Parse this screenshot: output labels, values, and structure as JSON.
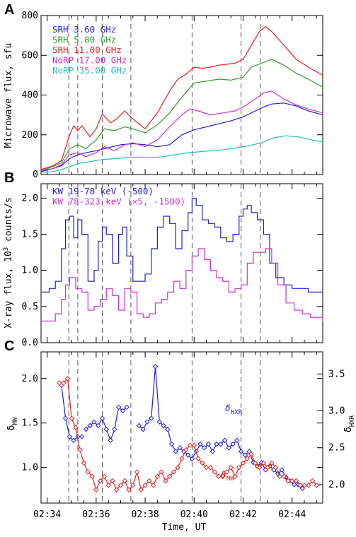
{
  "figure": {
    "panel_labels": [
      "A",
      "B",
      "C"
    ],
    "xlabel": "Time, UT"
  },
  "chart_data": [
    {
      "type": "line",
      "panel": "A",
      "ylabel": "Microwave flux, sfu",
      "xlim": [
        "02:33:45",
        "02:45:15"
      ],
      "ylim": [
        0,
        800
      ],
      "yticks": [
        0,
        200,
        400,
        600,
        800
      ],
      "legend_position": "top-left",
      "series": [
        {
          "name": "SRH 3.60 GHz",
          "color": "#1f1fdc",
          "x": [
            "02:33:45",
            "02:34:15",
            "02:34:35",
            "02:34:55",
            "02:35:15",
            "02:35:35",
            "02:36:00",
            "02:36:30",
            "02:37:00",
            "02:37:30",
            "02:38:00",
            "02:38:30",
            "02:39:00",
            "02:39:30",
            "02:40:00",
            "02:40:30",
            "02:41:00",
            "02:41:30",
            "02:42:00",
            "02:42:30",
            "02:42:50",
            "02:43:10",
            "02:43:40",
            "02:44:10",
            "02:44:40",
            "02:45:15"
          ],
          "values": [
            15,
            30,
            45,
            80,
            100,
            110,
            120,
            135,
            150,
            155,
            150,
            140,
            150,
            200,
            225,
            240,
            255,
            270,
            290,
            320,
            340,
            355,
            360,
            345,
            320,
            300
          ]
        },
        {
          "name": "SRH 5.80 GHz",
          "color": "#2e9c2e",
          "x": [
            "02:33:45",
            "02:34:15",
            "02:34:35",
            "02:34:55",
            "02:35:15",
            "02:35:35",
            "02:36:00",
            "02:36:20",
            "02:36:45",
            "02:37:10",
            "02:37:30",
            "02:38:00",
            "02:38:30",
            "02:39:00",
            "02:39:30",
            "02:40:00",
            "02:40:30",
            "02:41:00",
            "02:41:30",
            "02:42:00",
            "02:42:20",
            "02:42:45",
            "02:43:10",
            "02:43:40",
            "02:44:10",
            "02:44:40",
            "02:45:15"
          ],
          "values": [
            20,
            40,
            60,
            130,
            150,
            130,
            175,
            230,
            220,
            240,
            230,
            210,
            250,
            310,
            390,
            460,
            470,
            480,
            475,
            490,
            540,
            560,
            580,
            550,
            510,
            480,
            440
          ]
        },
        {
          "name": "SRH 11.00 GHz",
          "color": "#e41f1f",
          "x": [
            "02:33:45",
            "02:34:15",
            "02:34:35",
            "02:34:55",
            "02:35:05",
            "02:35:15",
            "02:35:25",
            "02:35:45",
            "02:36:00",
            "02:36:15",
            "02:36:35",
            "02:36:50",
            "02:37:10",
            "02:37:30",
            "02:38:00",
            "02:38:30",
            "02:39:00",
            "02:39:20",
            "02:39:40",
            "02:40:00",
            "02:40:20",
            "02:40:40",
            "02:41:00",
            "02:41:20",
            "02:41:40",
            "02:42:00",
            "02:42:20",
            "02:42:40",
            "02:42:55",
            "02:43:10",
            "02:43:40",
            "02:44:10",
            "02:44:40",
            "02:45:15"
          ],
          "values": [
            25,
            45,
            70,
            200,
            245,
            220,
            245,
            190,
            230,
            305,
            260,
            280,
            320,
            280,
            230,
            310,
            420,
            480,
            505,
            540,
            535,
            540,
            550,
            555,
            560,
            580,
            650,
            720,
            745,
            720,
            650,
            580,
            540,
            500
          ]
        },
        {
          "name": "NoRP 17.00 GHz",
          "color": "#cc2fcc",
          "x": [
            "02:33:45",
            "02:34:15",
            "02:34:35",
            "02:34:55",
            "02:35:15",
            "02:35:35",
            "02:36:00",
            "02:36:20",
            "02:36:45",
            "02:37:10",
            "02:37:30",
            "02:38:00",
            "02:38:30",
            "02:39:00",
            "02:39:30",
            "02:39:50",
            "02:40:10",
            "02:40:40",
            "02:41:10",
            "02:41:40",
            "02:42:00",
            "02:42:30",
            "02:42:50",
            "02:43:10",
            "02:43:40",
            "02:44:10",
            "02:44:40",
            "02:45:15"
          ],
          "values": [
            20,
            30,
            50,
            100,
            110,
            90,
            110,
            140,
            120,
            150,
            160,
            140,
            175,
            240,
            300,
            330,
            320,
            300,
            310,
            320,
            340,
            380,
            410,
            420,
            380,
            350,
            330,
            310
          ]
        },
        {
          "name": "NoRP 35.00 GHz",
          "color": "#22bfbf",
          "x": [
            "02:33:45",
            "02:34:15",
            "02:34:35",
            "02:34:55",
            "02:35:15",
            "02:35:45",
            "02:36:15",
            "02:36:45",
            "02:37:15",
            "02:37:45",
            "02:38:15",
            "02:38:45",
            "02:39:15",
            "02:39:45",
            "02:40:15",
            "02:40:45",
            "02:41:15",
            "02:41:45",
            "02:42:15",
            "02:42:45",
            "02:43:15",
            "02:43:45",
            "02:44:15",
            "02:44:45",
            "02:45:15"
          ],
          "values": [
            10,
            15,
            25,
            40,
            55,
            65,
            75,
            80,
            85,
            88,
            85,
            90,
            100,
            110,
            115,
            120,
            125,
            135,
            145,
            160,
            185,
            195,
            190,
            175,
            165
          ]
        }
      ]
    },
    {
      "type": "line",
      "panel": "B",
      "ylabel": "X-ray flux, 10^3 counts/s",
      "ylim": [
        0,
        2.2
      ],
      "yticks": [
        0.0,
        0.5,
        1.0,
        1.5,
        2.0
      ],
      "legend_position": "top-left",
      "series": [
        {
          "name": "KW 19-78 keV (-500)",
          "color": "#1f1fdc",
          "x": [
            "02:33:45",
            "02:34:05",
            "02:34:20",
            "02:34:35",
            "02:34:45",
            "02:34:55",
            "02:35:05",
            "02:35:15",
            "02:35:25",
            "02:35:40",
            "02:35:55",
            "02:36:05",
            "02:36:15",
            "02:36:25",
            "02:36:40",
            "02:36:55",
            "02:37:05",
            "02:37:15",
            "02:37:30",
            "02:37:45",
            "02:38:00",
            "02:38:15",
            "02:38:30",
            "02:38:45",
            "02:39:00",
            "02:39:15",
            "02:39:30",
            "02:39:45",
            "02:39:55",
            "02:40:05",
            "02:40:20",
            "02:40:35",
            "02:40:50",
            "02:41:05",
            "02:41:20",
            "02:41:35",
            "02:41:50",
            "02:42:00",
            "02:42:10",
            "02:42:20",
            "02:42:35",
            "02:42:50",
            "02:43:05",
            "02:43:20",
            "02:43:40",
            "02:44:00",
            "02:44:20",
            "02:44:40",
            "02:45:15"
          ],
          "values": [
            0.7,
            0.75,
            0.85,
            1.3,
            1.7,
            1.75,
            1.45,
            1.7,
            1.5,
            0.85,
            1.0,
            1.4,
            1.6,
            1.5,
            1.1,
            1.5,
            1.6,
            1.2,
            0.85,
            0.85,
            0.95,
            1.3,
            1.6,
            1.75,
            1.65,
            1.3,
            1.55,
            1.8,
            2.0,
            1.9,
            1.7,
            1.65,
            1.6,
            1.45,
            1.4,
            1.5,
            1.75,
            1.85,
            1.9,
            1.8,
            1.7,
            1.5,
            1.1,
            0.9,
            0.8,
            0.75,
            0.75,
            0.7,
            0.7
          ]
        },
        {
          "name": "KW 78-323 keV (×5, -1500)",
          "color": "#cc2fcc",
          "x": [
            "02:33:45",
            "02:34:05",
            "02:34:20",
            "02:34:35",
            "02:34:45",
            "02:34:55",
            "02:35:10",
            "02:35:25",
            "02:35:40",
            "02:35:55",
            "02:36:10",
            "02:36:25",
            "02:36:40",
            "02:36:55",
            "02:37:10",
            "02:37:25",
            "02:37:40",
            "02:37:55",
            "02:38:10",
            "02:38:25",
            "02:38:40",
            "02:38:55",
            "02:39:10",
            "02:39:25",
            "02:39:40",
            "02:39:55",
            "02:40:10",
            "02:40:25",
            "02:40:40",
            "02:40:55",
            "02:41:10",
            "02:41:25",
            "02:41:40",
            "02:41:55",
            "02:42:10",
            "02:42:25",
            "02:42:40",
            "02:42:55",
            "02:43:10",
            "02:43:25",
            "02:43:45",
            "02:44:05",
            "02:44:25",
            "02:44:45",
            "02:45:15"
          ],
          "values": [
            0.3,
            0.3,
            0.4,
            0.6,
            0.8,
            0.9,
            0.75,
            0.7,
            0.45,
            0.5,
            0.6,
            0.75,
            0.65,
            0.45,
            0.75,
            0.7,
            0.4,
            0.35,
            0.4,
            0.55,
            0.6,
            0.7,
            0.85,
            0.75,
            1.0,
            1.2,
            1.3,
            1.15,
            1.0,
            0.9,
            0.85,
            0.7,
            0.75,
            0.8,
            1.1,
            1.25,
            1.25,
            1.3,
            1.1,
            0.8,
            0.55,
            0.45,
            0.4,
            0.35,
            0.3
          ]
        }
      ]
    },
    {
      "type": "scatter",
      "panel": "C",
      "ylabel": "δ_MW",
      "ylabel_right": "δ_HXR",
      "ylim": [
        0.6,
        2.3
      ],
      "yticks": [
        1.0,
        1.5,
        2.0
      ],
      "ylim_right": [
        1.75,
        3.8
      ],
      "yticks_right": [
        2.0,
        2.5,
        3.0,
        3.5
      ],
      "xticks": [
        "02:34",
        "02:36",
        "02:38",
        "02:40",
        "02:42",
        "02:44"
      ],
      "series": [
        {
          "name": "δ_HXR",
          "axis": "right",
          "color": "#1f1fdc",
          "segments": [
            {
              "x": [
                "02:34:35",
                "02:34:45",
                "02:34:55",
                "02:35:05",
                "02:35:15",
                "02:35:25"
              ],
              "values": [
                3.35,
                2.9,
                2.65,
                2.6,
                2.65,
                2.65
              ]
            },
            {
              "x": [
                "02:35:35",
                "02:35:45",
                "02:35:55",
                "02:36:05",
                "02:36:15",
                "02:36:25",
                "02:36:35",
                "02:36:45",
                "02:36:55",
                "02:37:05",
                "02:37:15"
              ],
              "values": [
                2.75,
                2.8,
                2.85,
                2.8,
                2.9,
                2.75,
                2.6,
                2.75,
                3.05,
                3.0,
                3.05
              ]
            },
            {
              "x": [
                "02:37:45",
                "02:37:55",
                "02:38:05",
                "02:38:15",
                "02:38:25",
                "02:38:35",
                "02:38:45",
                "02:38:55",
                "02:39:05",
                "02:39:15",
                "02:39:25",
                "02:39:35",
                "02:39:45",
                "02:39:55",
                "02:40:05",
                "02:40:15",
                "02:40:25",
                "02:40:35",
                "02:40:45",
                "02:40:55",
                "02:41:05",
                "02:41:15",
                "02:41:25",
                "02:41:35",
                "02:41:45",
                "02:41:55",
                "02:42:05",
                "02:42:15",
                "02:42:25",
                "02:42:35",
                "02:42:45",
                "02:42:55",
                "02:43:05",
                "02:43:15",
                "02:43:25",
                "02:43:35",
                "02:43:45",
                "02:43:55",
                "02:44:05",
                "02:44:15",
                "02:44:25"
              ],
              "values": [
                2.8,
                2.75,
                2.85,
                2.9,
                3.6,
                2.85,
                2.8,
                2.75,
                2.55,
                2.45,
                2.5,
                2.45,
                2.4,
                2.35,
                2.45,
                2.55,
                2.5,
                2.55,
                2.45,
                2.55,
                2.55,
                2.6,
                2.5,
                2.55,
                2.6,
                2.45,
                2.4,
                2.45,
                2.3,
                2.25,
                2.3,
                2.2,
                2.25,
                2.2,
                2.15,
                2.2,
                2.1,
                2.05,
                2.0,
                2.0,
                1.95
              ]
            }
          ]
        },
        {
          "name": "δ_MW",
          "axis": "left",
          "color": "#e41f1f",
          "x": [
            "02:34:30",
            "02:34:40",
            "02:34:50",
            "02:35:00",
            "02:35:10",
            "02:35:20",
            "02:35:30",
            "02:35:40",
            "02:35:50",
            "02:36:00",
            "02:36:10",
            "02:36:20",
            "02:36:30",
            "02:36:40",
            "02:36:50",
            "02:37:00",
            "02:37:10",
            "02:37:20",
            "02:37:30",
            "02:37:40",
            "02:37:50",
            "02:38:00",
            "02:38:10",
            "02:38:20",
            "02:38:30",
            "02:38:40",
            "02:38:50",
            "02:39:00",
            "02:39:10",
            "02:39:20",
            "02:39:30",
            "02:39:40",
            "02:39:50",
            "02:40:00",
            "02:40:10",
            "02:40:20",
            "02:40:30",
            "02:40:40",
            "02:40:50",
            "02:41:00",
            "02:41:10",
            "02:41:20",
            "02:41:30",
            "02:41:40",
            "02:41:50",
            "02:42:00",
            "02:42:10",
            "02:42:20",
            "02:42:30",
            "02:42:40",
            "02:42:50",
            "02:43:00",
            "02:43:10",
            "02:43:20",
            "02:43:30",
            "02:43:40",
            "02:43:50",
            "02:44:00",
            "02:44:10",
            "02:44:20",
            "02:44:30",
            "02:44:40",
            "02:44:50",
            "02:45:00"
          ],
          "values": [
            1.95,
            1.95,
            2.0,
            1.55,
            1.45,
            1.2,
            1.05,
            0.95,
            0.9,
            0.75,
            0.85,
            0.9,
            0.8,
            0.85,
            0.75,
            0.8,
            0.85,
            0.75,
            0.8,
            0.95,
            0.75,
            0.8,
            0.85,
            0.8,
            0.9,
            0.95,
            0.85,
            0.9,
            0.95,
            1.0,
            1.1,
            1.2,
            1.25,
            1.25,
            1.1,
            1.05,
            1.0,
            1.0,
            0.95,
            0.9,
            0.9,
            0.95,
            1.0,
            0.9,
            1.0,
            1.05,
            1.1,
            1.15,
            1.05,
            1.0,
            1.05,
            1.0,
            1.05,
            1.0,
            0.9,
            0.9,
            0.85,
            0.85,
            0.85,
            0.8,
            0.8,
            0.8,
            0.85,
            0.8
          ]
        }
      ]
    }
  ],
  "event_lines": [
    "02:34:53",
    "02:35:15",
    "02:36:15",
    "02:37:25",
    "02:39:55",
    "02:41:55",
    "02:42:42"
  ],
  "layout_colors": {
    "axis": "#000000",
    "dashed": "#555555"
  }
}
